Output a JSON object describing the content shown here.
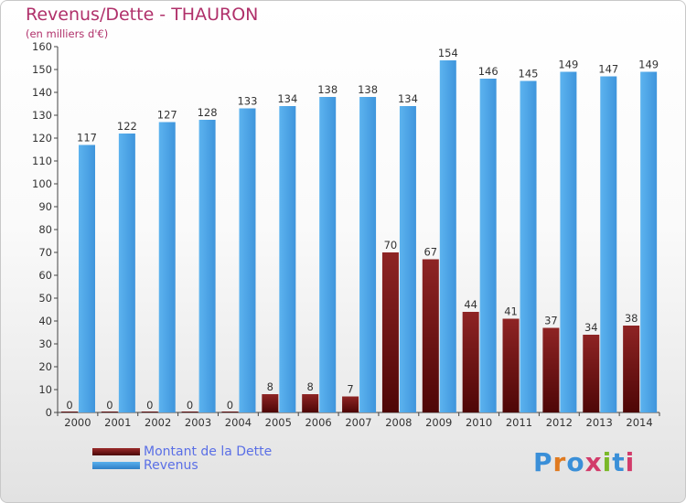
{
  "title": "Revenus/Dette - THAURON",
  "subtitle": "(en milliers d'€)",
  "legend": [
    {
      "label": "Montant de la Dette",
      "color": "#7a1414"
    },
    {
      "label": "Revenus",
      "color": "#4aa3e6"
    }
  ],
  "logo": {
    "text": "Proxiti",
    "letters": [
      "P",
      "r",
      "o",
      "x",
      "i",
      "t",
      "i"
    ],
    "colors": [
      "#3a8fd8",
      "#e07a1f",
      "#3a8fd8",
      "#d23b6a",
      "#7ab828",
      "#3a8fd8",
      "#d23b6a"
    ]
  },
  "chart_data": {
    "type": "bar",
    "categories": [
      "2000",
      "2001",
      "2002",
      "2003",
      "2004",
      "2005",
      "2006",
      "2007",
      "2008",
      "2009",
      "2010",
      "2011",
      "2012",
      "2013",
      "2014"
    ],
    "series": [
      {
        "name": "Montant de la Dette",
        "color": "#7a1414",
        "values": [
          0,
          0,
          0,
          0,
          0,
          8,
          8,
          7,
          70,
          67,
          44,
          41,
          37,
          34,
          38
        ]
      },
      {
        "name": "Revenus",
        "color": "#4aa3e6",
        "values": [
          117,
          122,
          127,
          128,
          133,
          134,
          138,
          138,
          134,
          154,
          146,
          145,
          149,
          147,
          149
        ]
      }
    ],
    "ylim": [
      0,
      160
    ],
    "ytick_step": 10,
    "grid": false
  }
}
